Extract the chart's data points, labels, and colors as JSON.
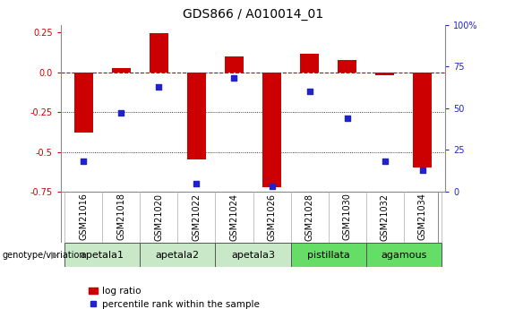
{
  "title": "GDS866 / A010014_01",
  "samples": [
    "GSM21016",
    "GSM21018",
    "GSM21020",
    "GSM21022",
    "GSM21024",
    "GSM21026",
    "GSM21028",
    "GSM21030",
    "GSM21032",
    "GSM21034"
  ],
  "log_ratio": [
    -0.38,
    0.03,
    0.245,
    -0.55,
    0.1,
    -0.72,
    0.12,
    0.08,
    -0.02,
    -0.6
  ],
  "percentile_rank": [
    18,
    47,
    63,
    5,
    68,
    3,
    60,
    44,
    18,
    13
  ],
  "ylim_left": [
    -0.75,
    0.3
  ],
  "ylim_right": [
    0,
    100
  ],
  "yticks_left": [
    -0.75,
    -0.5,
    -0.25,
    0.0,
    0.25
  ],
  "yticks_right": [
    0,
    25,
    50,
    75,
    100
  ],
  "ytick_labels_right": [
    "0",
    "25",
    "50",
    "75",
    "100%"
  ],
  "bar_color": "#cc0000",
  "dot_color": "#2222cc",
  "hline_color": "#cc0000",
  "dotted_line_color": "#000000",
  "groups": [
    {
      "label": "apetala1",
      "samples": [
        "GSM21016",
        "GSM21018"
      ],
      "color": "#c8e8c8"
    },
    {
      "label": "apetala2",
      "samples": [
        "GSM21020",
        "GSM21022"
      ],
      "color": "#c8e8c8"
    },
    {
      "label": "apetala3",
      "samples": [
        "GSM21024",
        "GSM21026"
      ],
      "color": "#c8e8c8"
    },
    {
      "label": "pistillata",
      "samples": [
        "GSM21028",
        "GSM21030"
      ],
      "color": "#66dd66"
    },
    {
      "label": "agamous",
      "samples": [
        "GSM21032",
        "GSM21034"
      ],
      "color": "#66dd66"
    }
  ],
  "legend_label_bar": "log ratio",
  "legend_label_dot": "percentile rank within the sample",
  "genotype_label": "genotype/variation",
  "title_fontsize": 10,
  "tick_fontsize": 7,
  "group_fontsize": 8
}
